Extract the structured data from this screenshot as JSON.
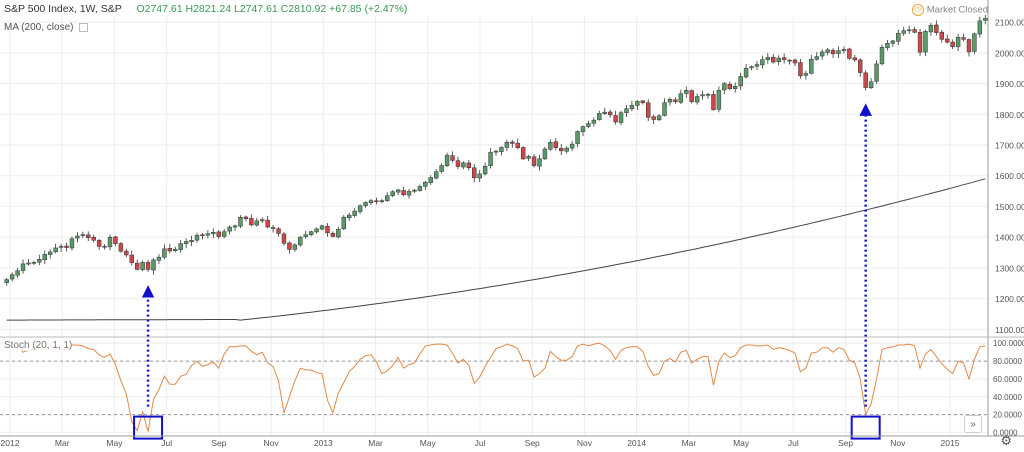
{
  "header": {
    "symbol": "S&P 500 Index, 1W, S&P",
    "ohlc": "O2747.61  H2821.24  L2747.61  C2810.92  +67.85 (+2.47%)",
    "status": "Market Closed"
  },
  "indicators": {
    "ma_label": "MA (200, close)",
    "stoch_label": "Stoch (20, 1, 1)"
  },
  "colors": {
    "up": "#5b9a68",
    "down": "#c84a48",
    "ma": "#444444",
    "stoch": "#e08a4a",
    "annotation": "#1010cc",
    "grid": "#eeeeee"
  },
  "chart_data": [
    {
      "type": "candlestick",
      "title": "S&P 500 Index, 1W, S&P",
      "ylim": [
        1075,
        2120
      ],
      "yticks": [
        "2100.00",
        "2000.00",
        "1900.00",
        "1800.00",
        "1700.00",
        "1600.00",
        "1500.00",
        "1400.00",
        "1300.00",
        "1200.00",
        "1100.00"
      ],
      "x_ticks": [
        "2012",
        "Mar",
        "May",
        "Jul",
        "Sep",
        "Nov",
        "2013",
        "Mar",
        "May",
        "Jul",
        "Sep",
        "Nov",
        "2014",
        "Mar",
        "May",
        "Jul",
        "Sep",
        "Nov",
        "2015"
      ],
      "close": [
        1262,
        1278,
        1291,
        1313,
        1316,
        1318,
        1328,
        1344,
        1352,
        1365,
        1370,
        1366,
        1395,
        1404,
        1408,
        1398,
        1390,
        1370,
        1369,
        1400,
        1379,
        1354,
        1342,
        1317,
        1295,
        1318,
        1295,
        1326,
        1335,
        1362,
        1355,
        1360,
        1379,
        1386,
        1390,
        1406,
        1405,
        1411,
        1416,
        1402,
        1418,
        1433,
        1437,
        1465,
        1460,
        1440,
        1453,
        1457,
        1433,
        1428,
        1412,
        1380,
        1360,
        1375,
        1400,
        1408,
        1418,
        1427,
        1437,
        1414,
        1402,
        1426,
        1465,
        1472,
        1485,
        1502,
        1513,
        1519,
        1516,
        1519,
        1535,
        1548,
        1554,
        1538,
        1549,
        1553,
        1565,
        1579,
        1594,
        1613,
        1633,
        1667,
        1650,
        1630,
        1642,
        1626,
        1593,
        1606,
        1631,
        1676,
        1680,
        1692,
        1709,
        1705,
        1691,
        1655,
        1663,
        1633,
        1655,
        1687,
        1709,
        1691,
        1681,
        1690,
        1703,
        1744,
        1760,
        1770,
        1781,
        1803,
        1807,
        1798,
        1775,
        1805,
        1818,
        1829,
        1842,
        1838,
        1790,
        1783,
        1795,
        1838,
        1849,
        1841,
        1867,
        1878,
        1841,
        1858,
        1864,
        1865,
        1815,
        1878,
        1900,
        1883,
        1891,
        1923,
        1950,
        1955,
        1962,
        1978,
        1985,
        1970,
        1983,
        1978,
        1976,
        1967,
        1925,
        1933,
        1979,
        1988,
        2003,
        2010,
        1997,
        2007,
        2011,
        1982,
        1977,
        1936,
        1887,
        1906,
        1964,
        2018,
        2031,
        2039,
        2064,
        2072,
        2075,
        2067,
        2002,
        2070,
        2090,
        2066,
        2044,
        2035,
        2020,
        2051,
        2044,
        2003,
        2062,
        2104,
        2112
      ],
      "series": [
        {
          "name": "MA (200, close)",
          "values": [
            1130,
            1590
          ]
        }
      ]
    },
    {
      "type": "line",
      "title": "Stoch (20, 1, 1)",
      "ylim": [
        -4,
        107
      ],
      "yticks": [
        "100.0000",
        "80.0000",
        "60.0000",
        "40.0000",
        "20.0000",
        "0.0000"
      ],
      "hlines": [
        80,
        20
      ],
      "values": [
        96,
        97,
        97,
        90,
        92,
        93,
        97,
        95,
        96,
        96,
        94,
        92,
        98,
        98,
        97,
        94,
        93,
        87,
        84,
        88,
        76,
        58,
        43,
        12,
        2,
        23,
        1,
        37,
        48,
        63,
        54,
        54,
        63,
        65,
        75,
        80,
        74,
        76,
        79,
        72,
        88,
        96,
        96,
        97,
        97,
        91,
        87,
        90,
        78,
        74,
        58,
        22,
        40,
        58,
        72,
        70,
        70,
        67,
        66,
        36,
        22,
        44,
        56,
        68,
        74,
        82,
        86,
        87,
        79,
        66,
        69,
        75,
        84,
        72,
        76,
        78,
        88,
        97,
        98,
        99,
        99,
        98,
        89,
        78,
        82,
        75,
        55,
        62,
        74,
        84,
        94,
        96,
        99,
        97,
        94,
        80,
        81,
        62,
        66,
        72,
        91,
        85,
        81,
        81,
        85,
        97,
        99,
        97,
        99,
        100,
        97,
        92,
        82,
        92,
        95,
        96,
        96,
        91,
        74,
        64,
        66,
        80,
        83,
        79,
        90,
        92,
        78,
        82,
        85,
        85,
        53,
        80,
        89,
        84,
        86,
        95,
        98,
        98,
        97,
        97,
        98,
        93,
        95,
        94,
        92,
        89,
        68,
        72,
        89,
        90,
        95,
        95,
        90,
        95,
        93,
        81,
        78,
        60,
        20,
        32,
        60,
        93,
        95,
        96,
        98,
        98,
        99,
        97,
        72,
        88,
        93,
        85,
        77,
        71,
        66,
        80,
        78,
        60,
        82,
        96,
        97
      ]
    }
  ]
}
